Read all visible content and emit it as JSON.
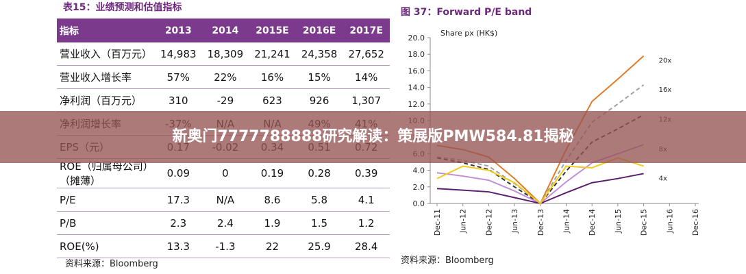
{
  "table": {
    "title": "表15：业绩预测和估值指标",
    "header": [
      "指标",
      "2013",
      "2014",
      "2015E",
      "2016E",
      "2017E"
    ],
    "rows": [
      [
        "营业收入（百万元）",
        "14,983",
        "18,309",
        "21,241",
        "24,358",
        "27,652"
      ],
      [
        "营业收入增长率",
        "57%",
        "22%",
        "16%",
        "15%",
        "14%"
      ],
      [
        "净利润（百万元）",
        "310",
        "-29",
        "623",
        "926",
        "1,307"
      ],
      [
        "净利润增长率",
        "-37%",
        "N/A",
        "N/A",
        "49%",
        "41%"
      ],
      [
        "EPS（元）",
        "0.17",
        "-0.02",
        "0.34",
        "0.51",
        "0.72"
      ],
      [
        "ROE（归属母公司）（摊薄）",
        "0.09",
        "0",
        "0.19",
        "0.28",
        "0.39"
      ],
      [
        "P/E",
        "17.3",
        "N/A",
        "8.6",
        "5.8",
        "4.1"
      ],
      [
        "P/B",
        "2.3",
        "2.4",
        "1.9",
        "1.5",
        "1.2"
      ],
      [
        "ROE(%)",
        "13.3",
        "-1.3",
        "22",
        "25.9",
        "28.4"
      ]
    ],
    "source": "资料来源：Bloomberg"
  },
  "chart_data": {
    "type": "line",
    "title": "图 37：Forward P/E band",
    "ylabel": "Share px (HK$)",
    "categories": [
      "Dec-11",
      "Jun-12",
      "Dec-12",
      "Jun-13",
      "Dec-13",
      "Jun-14",
      "Dec-14",
      "Jun-15",
      "Dec-15",
      "Jun-16",
      "Dec-16"
    ],
    "ylim": [
      0,
      20
    ],
    "yticks": [
      {
        "value": 0,
        "label": "0.0"
      },
      {
        "value": 2,
        "label": "2.0"
      },
      {
        "value": 4,
        "label": "4.0"
      },
      {
        "value": 6,
        "label": "6.0"
      },
      {
        "value": 8,
        "label": "8.0"
      },
      {
        "value": 10,
        "label": "10.0"
      },
      {
        "value": 12,
        "label": "12.0"
      },
      {
        "value": 14,
        "label": "14.0"
      },
      {
        "value": 16,
        "label": "16.0"
      },
      {
        "value": 18,
        "label": "18.0"
      },
      {
        "value": 20,
        "label": "20.0"
      }
    ],
    "series": [
      {
        "name": "20x",
        "color": "#e07b2a",
        "dash": false,
        "values": [
          7.0,
          6.5,
          5.6,
          3.0,
          0,
          6.5,
          12.3,
          15.0,
          17.8,
          null,
          null
        ]
      },
      {
        "name": "16x",
        "color": "#a0a0a0",
        "dash": true,
        "values": [
          5.6,
          5.2,
          4.5,
          2.4,
          0,
          5.2,
          9.8,
          12.0,
          14.3,
          null,
          null
        ]
      },
      {
        "name": "12x",
        "color": "#333333",
        "dash": true,
        "values": [
          5.5,
          4.9,
          4.1,
          2.0,
          0,
          3.9,
          7.4,
          9.0,
          10.7,
          null,
          null
        ]
      },
      {
        "name": "8x",
        "color": "#c08fd8",
        "dash": false,
        "values": [
          3.7,
          3.3,
          2.8,
          1.5,
          0,
          2.6,
          4.9,
          6.0,
          7.1,
          null,
          null
        ]
      },
      {
        "name": "4x",
        "color": "#5c1f6e",
        "dash": false,
        "values": [
          1.8,
          1.6,
          1.4,
          0.7,
          0,
          1.3,
          2.5,
          3.0,
          3.6,
          null,
          null
        ]
      },
      {
        "color": "#f2cc1c",
        "dash": false,
        "values": [
          3.0,
          4.5,
          4.0,
          2.5,
          0,
          4.5,
          4.3,
          5.5,
          4.5,
          null,
          null
        ]
      }
    ],
    "source": "资料来源：Bloomberg"
  },
  "banner": {
    "text": "新奥门7777788888研究解读：策展版PMW584.81揭秘"
  }
}
